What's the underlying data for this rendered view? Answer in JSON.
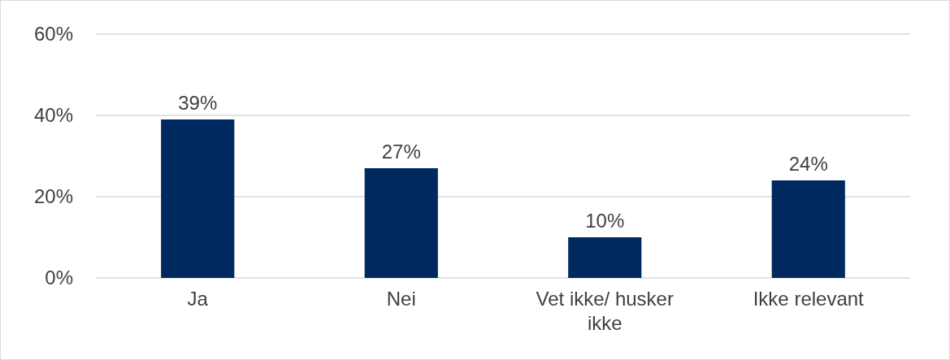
{
  "chart_data": {
    "type": "bar",
    "categories": [
      "Ja",
      "Nei",
      "Vet ikke/ husker ikke",
      "Ikke relevant"
    ],
    "values": [
      39,
      27,
      10,
      24
    ],
    "value_labels": [
      "39%",
      "27%",
      "10%",
      "24%"
    ],
    "color": "#002960",
    "ylim": [
      0,
      60
    ],
    "yticks": [
      {
        "value": 0,
        "label": "0%"
      },
      {
        "value": 20,
        "label": "20%"
      },
      {
        "value": 40,
        "label": "40%"
      },
      {
        "value": 60,
        "label": "60%"
      }
    ],
    "grid": "y"
  }
}
